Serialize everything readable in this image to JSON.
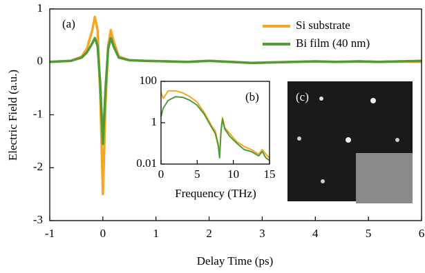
{
  "chart_data": [
    {
      "type": "line",
      "panel_label": "(a)",
      "x_label": "Delay Time (ps)",
      "y_label": "Electric Field (a.u.)",
      "x": [
        -1,
        -0.6,
        -0.4,
        -0.3,
        -0.2,
        -0.15,
        -0.1,
        -0.05,
        0,
        0.05,
        0.1,
        0.15,
        0.2,
        0.3,
        0.5,
        0.8,
        1.2,
        1.6,
        2.0,
        2.4,
        2.8,
        3.2,
        3.6,
        4.0,
        4.4,
        4.8,
        5.2,
        5.6,
        6.0
      ],
      "series": [
        {
          "name": "Si substrate",
          "color": "#f5a623",
          "values": [
            0,
            0.02,
            0.1,
            0.25,
            0.6,
            0.85,
            0.6,
            -0.6,
            -2.5,
            -0.8,
            0.3,
            0.6,
            0.4,
            0.1,
            0.03,
            0.02,
            0.01,
            0,
            0.02,
            0,
            -0.02,
            -0.01,
            0,
            0.01,
            0,
            0.01,
            0,
            0.01,
            0
          ]
        },
        {
          "name": "Bi film (40 nm)",
          "color": "#4f9b3a",
          "values": [
            0,
            0.02,
            0.08,
            0.18,
            0.35,
            0.45,
            0.3,
            -0.4,
            -1.55,
            -0.5,
            0.25,
            0.45,
            0.3,
            0.08,
            0.03,
            0.02,
            0.01,
            0,
            0.02,
            0,
            -0.02,
            -0.01,
            0,
            0.01,
            0,
            0.01,
            0,
            0.01,
            0.02
          ]
        }
      ],
      "xlim": [
        -1,
        6
      ],
      "ylim": [
        -3,
        1
      ],
      "xticks": [
        -1,
        0,
        1,
        2,
        3,
        4,
        5,
        6
      ],
      "yticks": [
        -3,
        -2,
        -1,
        0,
        1
      ],
      "legend": "upper right"
    },
    {
      "type": "line",
      "panel_label": "(b)",
      "x_label": "Frequency (THz)",
      "log_y": true,
      "x": [
        0,
        0.3,
        1,
        2,
        3,
        4,
        5,
        6,
        6.5,
        7,
        7.5,
        7.9,
        8.1,
        8.3,
        8.5,
        8.8,
        9.5,
        10.5,
        11.5,
        12.5,
        13.5,
        14,
        14.5,
        15
      ],
      "series": [
        {
          "name": "Si substrate",
          "color": "#f5a623",
          "values": [
            30,
            15,
            35,
            35,
            28,
            18,
            10,
            3,
            1.5,
            0.7,
            0.4,
            0.1,
            0.03,
            0.5,
            1.8,
            0.6,
            0.3,
            0.12,
            0.07,
            0.05,
            0.03,
            0.05,
            0.03,
            0.02
          ]
        },
        {
          "name": "Bi film (40 nm)",
          "color": "#4f9b3a",
          "values": [
            2,
            5,
            12,
            18,
            17,
            12,
            7,
            2.5,
            1.2,
            0.6,
            0.3,
            0.08,
            0.02,
            0.4,
            1.5,
            0.5,
            0.22,
            0.1,
            0.05,
            0.04,
            0.025,
            0.04,
            0.02,
            0.015
          ]
        }
      ],
      "xlim": [
        0,
        15
      ],
      "ylim": [
        0.01,
        100
      ],
      "xticks": [
        0,
        5,
        10,
        15
      ],
      "yticks": [
        0.01,
        1,
        100
      ]
    }
  ],
  "inset_c": {
    "label": "(c)"
  }
}
